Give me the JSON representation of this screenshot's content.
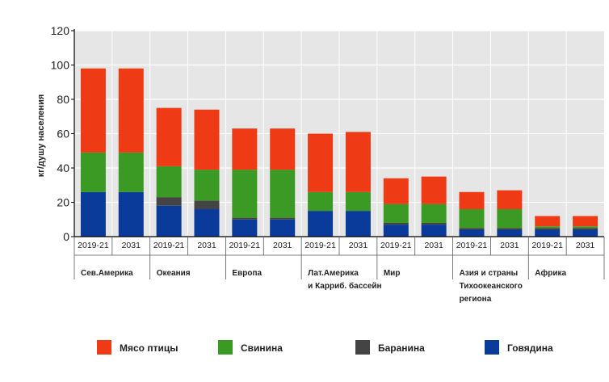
{
  "chart_data": {
    "type": "bar",
    "stacked": true,
    "ylabel": "кг/душу населения",
    "xlabel": "",
    "ylim": [
      0,
      120
    ],
    "yticks": [
      0,
      20,
      40,
      60,
      80,
      100,
      120
    ],
    "grid": true,
    "legend_position": "bottom",
    "groups": [
      {
        "label": [
          "Сев.Америка"
        ],
        "periods": [
          "2019-21",
          "2031"
        ]
      },
      {
        "label": [
          "Океания"
        ],
        "periods": [
          "2019-21",
          "2031"
        ]
      },
      {
        "label": [
          "Европа"
        ],
        "periods": [
          "2019-21",
          "2031"
        ]
      },
      {
        "label": [
          "Лат.Америка",
          "и Карриб. бассейн"
        ],
        "periods": [
          "2019-21",
          "2031"
        ]
      },
      {
        "label": [
          "Мир"
        ],
        "periods": [
          "2019-21",
          "2031"
        ]
      },
      {
        "label": [
          "Азия и страны",
          "Тихоокеанского",
          "региона"
        ],
        "periods": [
          "2019-21",
          "2031"
        ]
      },
      {
        "label": [
          "Африка"
        ],
        "periods": [
          "2019-21",
          "2031"
        ]
      }
    ],
    "series": [
      {
        "name": "Говядина",
        "color": "#0a3a9a",
        "values": [
          26,
          26,
          18,
          16,
          10,
          10,
          15,
          15,
          7,
          7,
          4,
          4,
          4,
          4
        ]
      },
      {
        "name": "Баранина",
        "color": "#444444",
        "values": [
          0,
          0,
          5,
          5,
          1,
          1,
          0,
          0,
          1,
          1,
          1,
          1,
          1,
          1
        ]
      },
      {
        "name": "Свинина",
        "color": "#3a9a23",
        "values": [
          23,
          23,
          18,
          18,
          28,
          28,
          11,
          11,
          11,
          11,
          11,
          11,
          1,
          1
        ]
      },
      {
        "name": "Мясо птицы",
        "color": "#ee3b15",
        "values": [
          49,
          49,
          34,
          35,
          24,
          24,
          34,
          35,
          15,
          16,
          10,
          11,
          6,
          6
        ]
      }
    ],
    "legend_order": [
      "Мясо птицы",
      "Свинина",
      "Баранина",
      "Говядина"
    ]
  }
}
